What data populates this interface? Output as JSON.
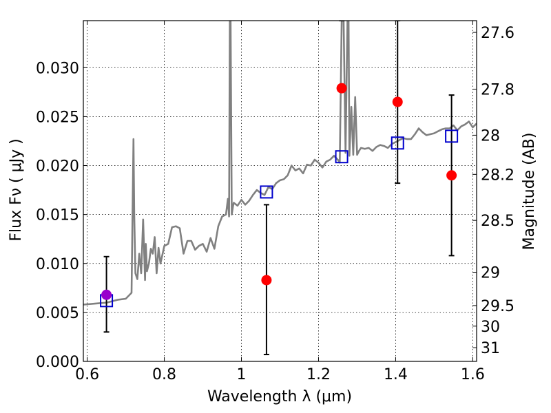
{
  "chart_data": {
    "type": "line",
    "xlabel": "Wavelength  λ (μm)",
    "ylabel": "Flux  Fν  ( μJy )",
    "y2label": "Magnitude (AB)",
    "xlim": [
      0.59,
      1.61
    ],
    "ylim": [
      0.0,
      0.0348
    ],
    "xticks": [
      0.6,
      0.8,
      1.0,
      1.2,
      1.4,
      1.6
    ],
    "xtick_labels": [
      "0.6",
      "0.8",
      "1",
      "1.2",
      "1.4",
      "1.6"
    ],
    "yticks": [
      0.0,
      0.005,
      0.01,
      0.015,
      0.02,
      0.025,
      0.03
    ],
    "ytick_labels": [
      "0.000",
      "0.005",
      "0.010",
      "0.015",
      "0.020",
      "0.025",
      "0.030"
    ],
    "y2ticks": [
      {
        "label": "27.6",
        "flux": 0.0336
      },
      {
        "label": "27.8",
        "flux": 0.0278
      },
      {
        "label": "28",
        "flux": 0.0231
      },
      {
        "label": "28.2",
        "flux": 0.0191
      },
      {
        "label": "28.5",
        "flux": 0.0144
      },
      {
        "label": "29",
        "flux": 0.0091
      },
      {
        "label": "29.5",
        "flux": 0.0057
      },
      {
        "label": "30",
        "flux": 0.0036
      },
      {
        "label": "31",
        "flux": 0.0014
      }
    ],
    "grid": true,
    "series": [
      {
        "kind": "spectrum",
        "color": "#808080",
        "x": [
          0.59,
          0.62,
          0.65,
          0.68,
          0.7,
          0.715,
          0.72,
          0.722,
          0.725,
          0.73,
          0.735,
          0.74,
          0.745,
          0.75,
          0.752,
          0.755,
          0.76,
          0.765,
          0.77,
          0.775,
          0.78,
          0.785,
          0.79,
          0.8,
          0.81,
          0.82,
          0.83,
          0.84,
          0.85,
          0.86,
          0.87,
          0.88,
          0.89,
          0.9,
          0.91,
          0.92,
          0.93,
          0.94,
          0.95,
          0.96,
          0.965,
          0.968,
          0.97,
          0.972,
          0.975,
          0.978,
          0.98,
          0.99,
          1.0,
          1.01,
          1.02,
          1.03,
          1.04,
          1.05,
          1.06,
          1.07,
          1.08,
          1.09,
          1.1,
          1.11,
          1.12,
          1.13,
          1.14,
          1.15,
          1.16,
          1.17,
          1.18,
          1.19,
          1.2,
          1.21,
          1.22,
          1.23,
          1.24,
          1.25,
          1.255,
          1.26,
          1.265,
          1.27,
          1.275,
          1.278,
          1.28,
          1.285,
          1.29,
          1.295,
          1.3,
          1.305,
          1.31,
          1.32,
          1.33,
          1.34,
          1.35,
          1.36,
          1.37,
          1.38,
          1.39,
          1.4,
          1.41,
          1.42,
          1.43,
          1.44,
          1.45,
          1.46,
          1.47,
          1.48,
          1.49,
          1.5,
          1.51,
          1.52,
          1.53,
          1.54,
          1.55,
          1.56,
          1.57,
          1.58,
          1.59,
          1.6,
          1.61
        ],
        "y": [
          0.0058,
          0.0059,
          0.006,
          0.0063,
          0.0064,
          0.007,
          0.0227,
          0.015,
          0.009,
          0.0084,
          0.011,
          0.009,
          0.0145,
          0.0083,
          0.012,
          0.0092,
          0.01,
          0.0115,
          0.011,
          0.0127,
          0.009,
          0.0116,
          0.01,
          0.0118,
          0.012,
          0.0137,
          0.0138,
          0.0136,
          0.011,
          0.0123,
          0.0123,
          0.0114,
          0.0118,
          0.012,
          0.0112,
          0.0126,
          0.0115,
          0.0138,
          0.0148,
          0.015,
          0.0166,
          0.0148,
          0.0348,
          0.0348,
          0.015,
          0.0158,
          0.0162,
          0.0159,
          0.0165,
          0.016,
          0.0164,
          0.017,
          0.0175,
          0.0172,
          0.017,
          0.0178,
          0.0176,
          0.0182,
          0.0185,
          0.0186,
          0.019,
          0.02,
          0.0195,
          0.0197,
          0.0192,
          0.0201,
          0.02,
          0.0206,
          0.0203,
          0.0198,
          0.0204,
          0.0206,
          0.021,
          0.0206,
          0.0203,
          0.0348,
          0.0348,
          0.0213,
          0.0348,
          0.0348,
          0.021,
          0.026,
          0.0211,
          0.027,
          0.0211,
          0.0215,
          0.0218,
          0.0217,
          0.0218,
          0.0215,
          0.0219,
          0.0221,
          0.022,
          0.0218,
          0.0222,
          0.0224,
          0.0226,
          0.0228,
          0.0227,
          0.0227,
          0.0232,
          0.0238,
          0.0234,
          0.0231,
          0.0232,
          0.0233,
          0.0235,
          0.0237,
          0.0238,
          0.0238,
          0.0241,
          0.0236,
          0.024,
          0.0242,
          0.0245,
          0.0239,
          0.0243
        ]
      },
      {
        "kind": "model-photometry",
        "marker": "open-square",
        "color": "#0000cc",
        "x": [
          0.65,
          1.065,
          1.26,
          1.405,
          1.545
        ],
        "y": [
          0.0062,
          0.0173,
          0.0209,
          0.0223,
          0.023
        ]
      },
      {
        "kind": "observed-photometry",
        "marker": "filled-circle",
        "color": "#ff0000",
        "first_point_color": "#9900cc",
        "x": [
          0.65,
          1.065,
          1.26,
          1.405,
          1.545
        ],
        "y": [
          0.0068,
          0.0083,
          0.0279,
          0.0265,
          0.019
        ],
        "err_low": [
          0.003,
          0.0007,
          0.0348,
          0.0182,
          0.0108
        ],
        "err_high": [
          0.0107,
          0.016,
          0.0348,
          0.0348,
          0.0272
        ]
      }
    ]
  }
}
